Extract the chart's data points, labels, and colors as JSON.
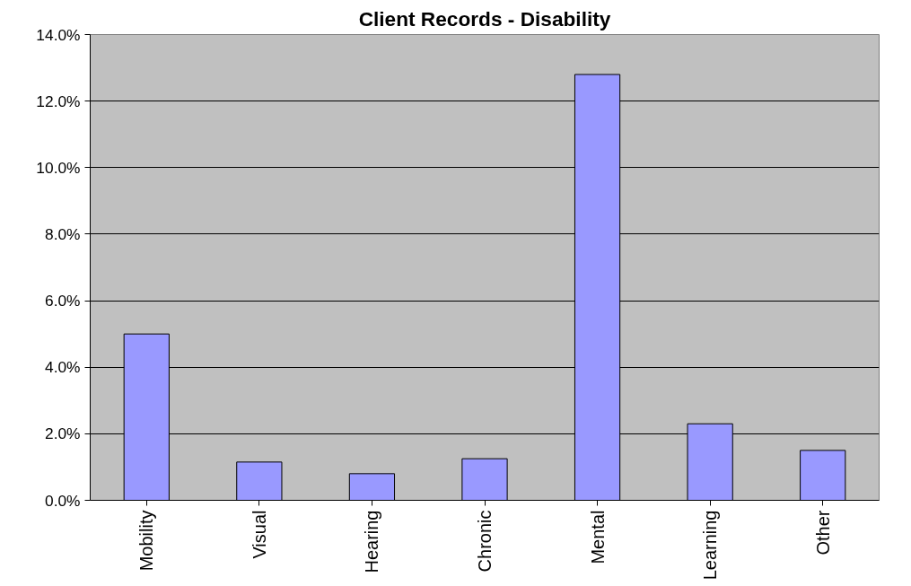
{
  "chart_data": {
    "type": "bar",
    "title": "Client Records - Disability",
    "categories": [
      "Mobility",
      "Visual",
      "Hearing",
      "Chronic",
      "Mental",
      "Learning",
      "Other"
    ],
    "values": [
      5.0,
      1.15,
      0.8,
      1.25,
      12.8,
      2.3,
      1.5
    ],
    "color": "#9999ff",
    "ylim": [
      0,
      14
    ],
    "yticks": [
      {
        "value": 0,
        "label": "0.0%"
      },
      {
        "value": 2,
        "label": "2.0%"
      },
      {
        "value": 4,
        "label": "4.0%"
      },
      {
        "value": 6,
        "label": "6.0%"
      },
      {
        "value": 8,
        "label": "8.0%"
      },
      {
        "value": 10,
        "label": "10.0%"
      },
      {
        "value": 12,
        "label": "12.0%"
      },
      {
        "value": 14,
        "label": "14.0%"
      }
    ],
    "grid": "y"
  }
}
